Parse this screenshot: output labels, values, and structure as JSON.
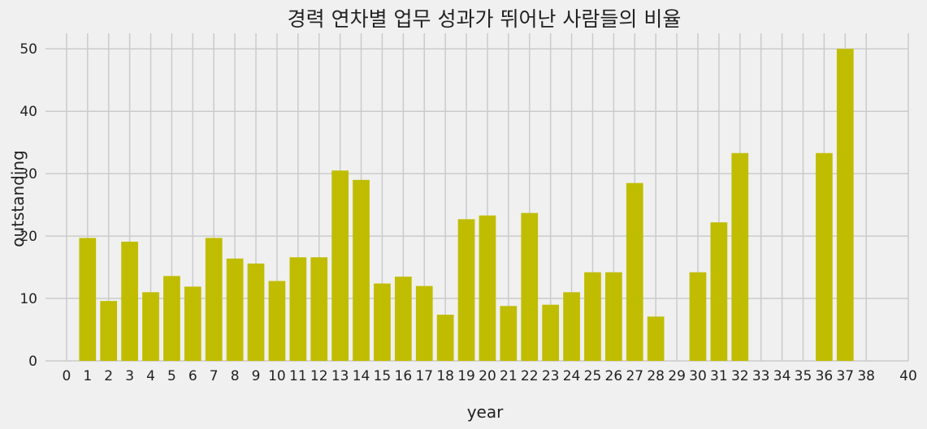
{
  "chart_data": {
    "type": "bar",
    "title": "경력 연차별 업무 성과가 뛰어난 사람들의 비율",
    "xlabel": "year",
    "ylabel": "outstanding",
    "xlim": [
      -1,
      40
    ],
    "ylim": [
      0,
      52.5
    ],
    "x_ticks": [
      0,
      1,
      2,
      3,
      4,
      5,
      6,
      7,
      8,
      9,
      10,
      11,
      12,
      13,
      14,
      15,
      16,
      17,
      18,
      19,
      20,
      21,
      22,
      23,
      24,
      25,
      26,
      27,
      28,
      29,
      30,
      31,
      32,
      33,
      34,
      35,
      36,
      37,
      38,
      40
    ],
    "y_ticks": [
      0,
      10,
      20,
      30,
      40,
      50
    ],
    "grid": true,
    "bar_color": "#c0bd00",
    "background": "#f0f0f0",
    "x": [
      1,
      2,
      3,
      4,
      5,
      6,
      7,
      8,
      9,
      10,
      11,
      12,
      13,
      14,
      15,
      16,
      17,
      18,
      19,
      20,
      21,
      22,
      23,
      24,
      25,
      26,
      27,
      28,
      30,
      31,
      32,
      36,
      37
    ],
    "values": [
      19.7,
      9.6,
      19.1,
      11.0,
      13.6,
      11.9,
      19.7,
      16.4,
      15.6,
      12.8,
      16.6,
      16.6,
      30.5,
      29.0,
      12.4,
      13.5,
      12.0,
      7.4,
      22.7,
      23.3,
      8.8,
      23.7,
      9.0,
      11.0,
      14.2,
      14.2,
      28.5,
      7.1,
      14.2,
      22.2,
      33.3,
      33.3,
      50.0
    ]
  }
}
